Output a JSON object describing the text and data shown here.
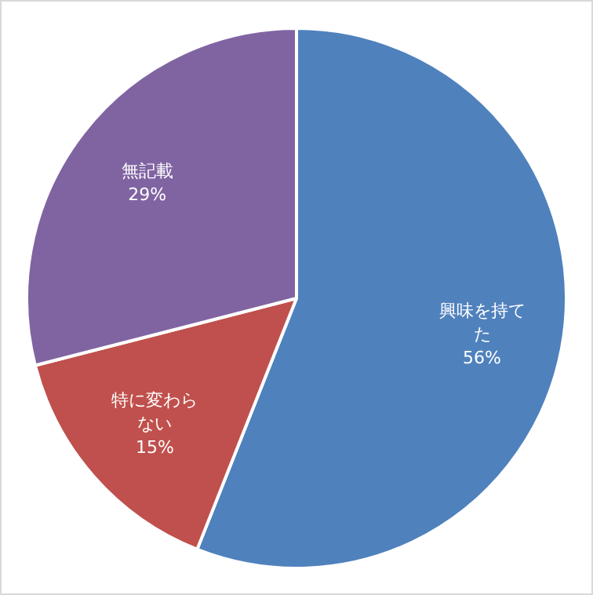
{
  "chart_data": {
    "type": "pie",
    "categories": [
      "興味を持てた",
      "特に変わらない",
      "無記載"
    ],
    "values": [
      56,
      15,
      29
    ],
    "value_labels": [
      "56%",
      "15%",
      "29%"
    ],
    "colors": [
      "#4f81bd",
      "#c0504d",
      "#8064a2"
    ],
    "legend": false
  }
}
